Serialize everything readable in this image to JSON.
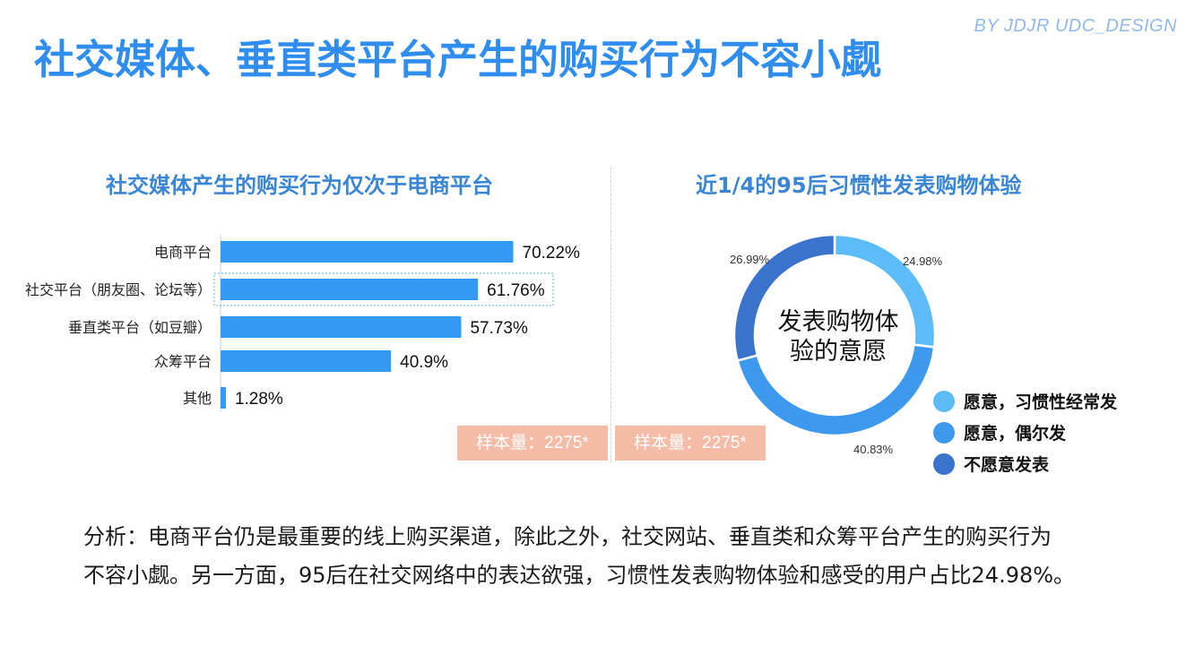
{
  "brand": "BY JDJR UDC_DESIGN",
  "title": "社交媒体、垂直类平台产生的购买行为不容小觑",
  "colors": {
    "bar": "#3399f2",
    "donut": [
      "#5bbcf7",
      "#3d99ee",
      "#3b73cc"
    ],
    "badge": "#f4bba7"
  },
  "chart_data": [
    {
      "type": "bar",
      "orientation": "horizontal",
      "title": "社交媒体产生的购买行为仅次于电商平台",
      "categories": [
        "电商平台",
        "社交平台（朋友圈、论坛等）",
        "垂直类平台（如豆瓣）",
        "众筹平台",
        "其他"
      ],
      "values": [
        70.22,
        61.76,
        57.73,
        40.9,
        1.28
      ],
      "value_labels": [
        "70.22%",
        "61.76%",
        "57.73%",
        "40.9%",
        "1.28%"
      ],
      "xlim": [
        0,
        100
      ],
      "grid": false,
      "sample_note": "样本量：2275*"
    },
    {
      "type": "pie",
      "variant": "donut",
      "title": "近1/4的95后习惯性发表购物体验",
      "center_text": [
        "发表购物体",
        "验的意愿"
      ],
      "categories": [
        "愿意，习惯性经常发",
        "愿意，偶尔发",
        "不愿意发表"
      ],
      "values": [
        24.98,
        40.83,
        26.99
      ],
      "value_labels": [
        "24.98%",
        "40.83%",
        "26.99%"
      ],
      "legend_position": "bottom-right",
      "sample_note": "样本量：2275*"
    }
  ],
  "analysis": [
    "分析：电商平台仍是最重要的线上购买渠道，除此之外，社交网站、垂直类和众筹平台产生的购买行为",
    "不容小觑。另一方面，95后在社交网络中的表达欲强，习惯性发表购物体验和感受的用户占比24.98%。"
  ]
}
